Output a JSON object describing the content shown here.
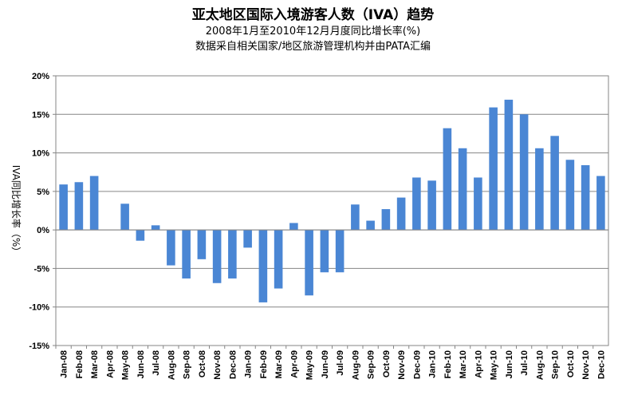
{
  "chart_data": {
    "type": "bar",
    "title": "亚太地区国际入境游客人数（IVA）趋势",
    "subtitle": "2008年1月至2010年12月月度同比增长率(%)",
    "source": "数据采自相关国家/地区旅游管理机构并由PATA汇编",
    "ylabel": "IVA同比增长率（%）",
    "xlabel": "",
    "ylim": [
      -15,
      20
    ],
    "yticks": [
      20,
      15,
      10,
      5,
      0,
      -5,
      -10,
      -15
    ],
    "ytick_labels": [
      "20%",
      "15%",
      "10%",
      "5%",
      "0%",
      "-5%",
      "-10%",
      "-15%"
    ],
    "grid": true,
    "legend": "none",
    "bar_color": "#4a86d4",
    "categories": [
      "Jan-08",
      "Feb-08",
      "Mar-08",
      "Apr-08",
      "May-08",
      "Jun-08",
      "Jul-08",
      "Aug-08",
      "Sep-08",
      "Oct-08",
      "Nov-08",
      "Dec-08",
      "Jan-09",
      "Feb-09",
      "Mar-09",
      "Apr-09",
      "May-09",
      "Jun-09",
      "Jul-09",
      "Aug-09",
      "Sep-09",
      "Oct-09",
      "Nov-09",
      "Dec-09",
      "Jan-10",
      "Feb-10",
      "Mar-10",
      "Apr-10",
      "May-10",
      "Jun-10",
      "Jul-10",
      "Aug-10",
      "Sep-10",
      "Oct-10",
      "Nov-10",
      "Dec-10"
    ],
    "values": [
      5.9,
      6.2,
      7.0,
      0,
      3.4,
      -1.4,
      0.6,
      -4.6,
      -6.3,
      -3.8,
      -6.9,
      -6.3,
      -2.3,
      -9.4,
      -7.6,
      0.9,
      -8.5,
      -5.5,
      -5.5,
      3.3,
      1.2,
      2.7,
      4.2,
      6.8,
      6.4,
      13.2,
      10.6,
      6.8,
      15.9,
      16.9,
      15.0,
      10.6,
      12.2,
      9.1,
      8.4,
      7.0
    ]
  }
}
